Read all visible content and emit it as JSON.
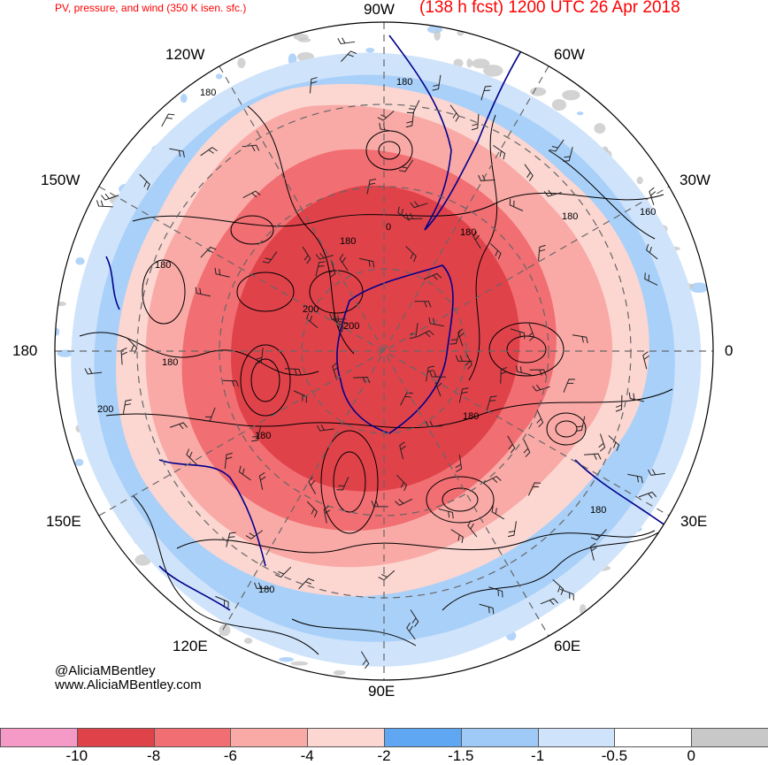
{
  "header": {
    "product": "PV, pressure, and wind (350 K isen. sfc.)",
    "valid": "(138 h fcst) 1200 UTC 26 Apr 2018"
  },
  "longitude_labels": {
    "w90": "90W",
    "w120": "120W",
    "w60": "60W",
    "w150": "150W",
    "w30": "30W",
    "lon180": "180",
    "lon0": "0",
    "e150": "150E",
    "e30": "30E",
    "e120": "120E",
    "e60": "60E",
    "e90": "90E"
  },
  "contour_labels": [
    "180",
    "180",
    "160",
    "180",
    "180",
    "180",
    "200",
    "200",
    "180",
    "180",
    "180",
    "180",
    "180",
    "200",
    "180",
    "0"
  ],
  "credit": {
    "handle": "@AliciaMBentley",
    "site": "www.AliciaMBentley.com"
  },
  "colorbar": {
    "colors": [
      "#f59ac6",
      "#e0424a",
      "#f16e72",
      "#f9aaa6",
      "#fcd6d1",
      "#5fa6f3",
      "#9fcaf8",
      "#cfe3fb",
      "#ffffff",
      "#c8c8c8"
    ],
    "ticks": [
      "-10",
      "-8",
      "-6",
      "-4",
      "-2",
      "-1.5",
      "-1",
      "-0.5",
      "0"
    ]
  }
}
